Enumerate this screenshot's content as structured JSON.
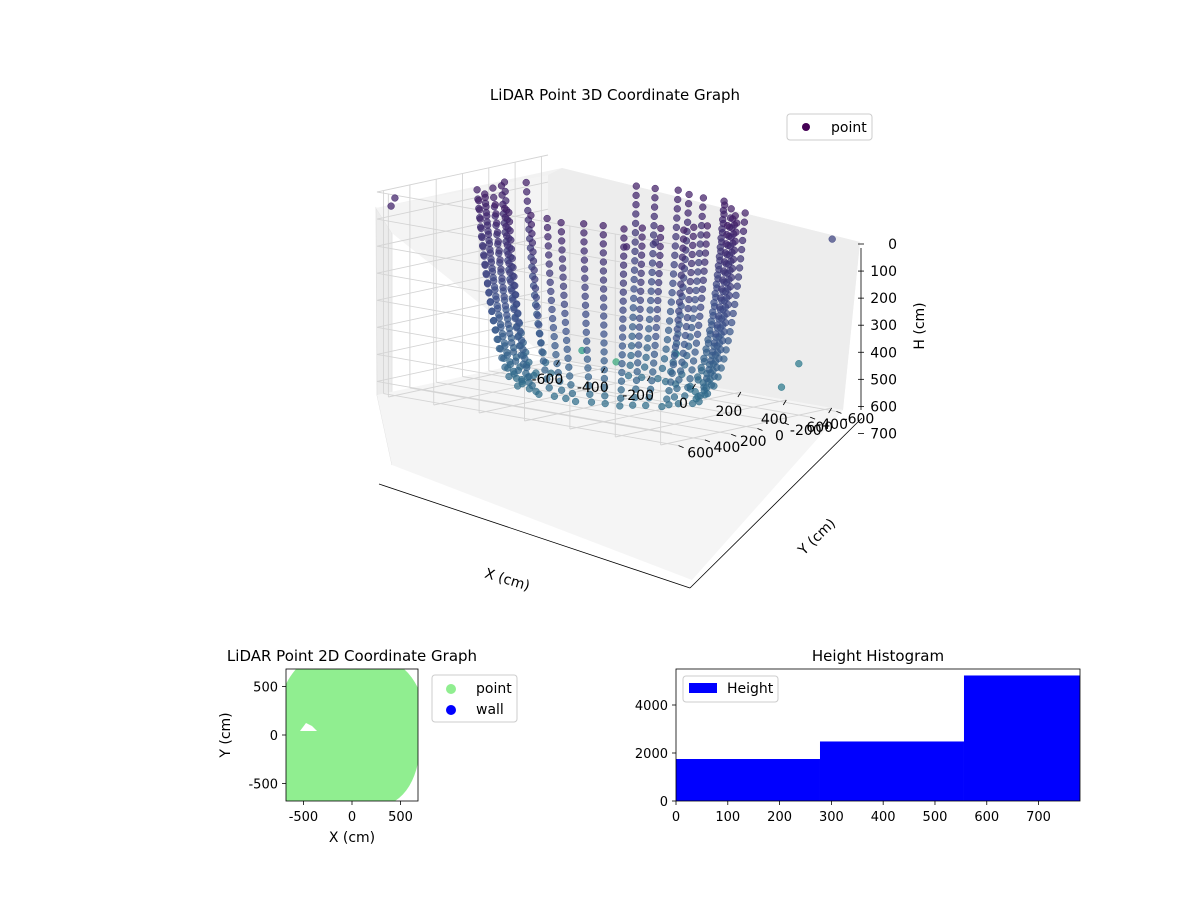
{
  "chart_data": [
    {
      "type": "scatter",
      "subtype": "3d",
      "title": "LiDAR Point 3D Coordinate Graph",
      "xlabel": "X (cm)",
      "ylabel": "Y (cm)",
      "zlabel": "H (cm)",
      "xticks": [
        "-600",
        "-400",
        "-200",
        "0",
        "200",
        "400",
        "600"
      ],
      "yticks": [
        "-600",
        "-400",
        "-200",
        "0",
        "200",
        "400",
        "600"
      ],
      "zticks": [
        "0",
        "100",
        "200",
        "300",
        "400",
        "500",
        "600",
        "700"
      ],
      "xlim": [
        -650,
        650
      ],
      "ylim": [
        -650,
        650
      ],
      "zlim": [
        0,
        750
      ],
      "zaxis_inverted": true,
      "legend": {
        "position": "top-right",
        "entries": [
          "point"
        ]
      },
      "colormap": "viridis",
      "colors": {
        "pane": "#f2f2f2",
        "grid": "#cfcfcf",
        "marker": "#440154"
      },
      "series": [
        {
          "name": "point",
          "shape": "cylindrical wall, radius about 480 cm, height 0-700 cm, open on one side",
          "approx_radius_cm": 480,
          "height_range": [
            0,
            700
          ]
        }
      ]
    },
    {
      "type": "scatter",
      "title": "LiDAR Point 2D Coordinate Graph",
      "xlabel": "X (cm)",
      "ylabel": "Y (cm)",
      "xticks": [
        "-500",
        "0",
        "500"
      ],
      "yticks": [
        "-500",
        "0",
        "500"
      ],
      "xlim": [
        -680,
        680
      ],
      "ylim": [
        -680,
        680
      ],
      "legend": {
        "position": "outside-right",
        "entries": [
          "point",
          "wall"
        ]
      },
      "colors": {
        "point": "#90ee90",
        "wall": "#0000ff"
      },
      "series": [
        {
          "name": "point",
          "fill": "dense, covers nearly the full plot area"
        },
        {
          "name": "wall",
          "values": []
        }
      ]
    },
    {
      "type": "bar",
      "subtype": "histogram",
      "title": "Height Histogram",
      "xticks": [
        "0",
        "100",
        "200",
        "300",
        "400",
        "500",
        "600",
        "700"
      ],
      "yticks": [
        "0",
        "2000",
        "4000"
      ],
      "xlim": [
        0,
        780
      ],
      "ylim": [
        0,
        5500
      ],
      "legend": {
        "position": "top-left",
        "entries": [
          "Height"
        ]
      },
      "colors": {
        "bar": "#0000ff"
      },
      "bins": [
        {
          "x0": 0,
          "x1": 278,
          "count": 1750
        },
        {
          "x0": 278,
          "x1": 556,
          "count": 2480
        },
        {
          "x0": 556,
          "x1": 780,
          "count": 5230
        }
      ]
    }
  ]
}
